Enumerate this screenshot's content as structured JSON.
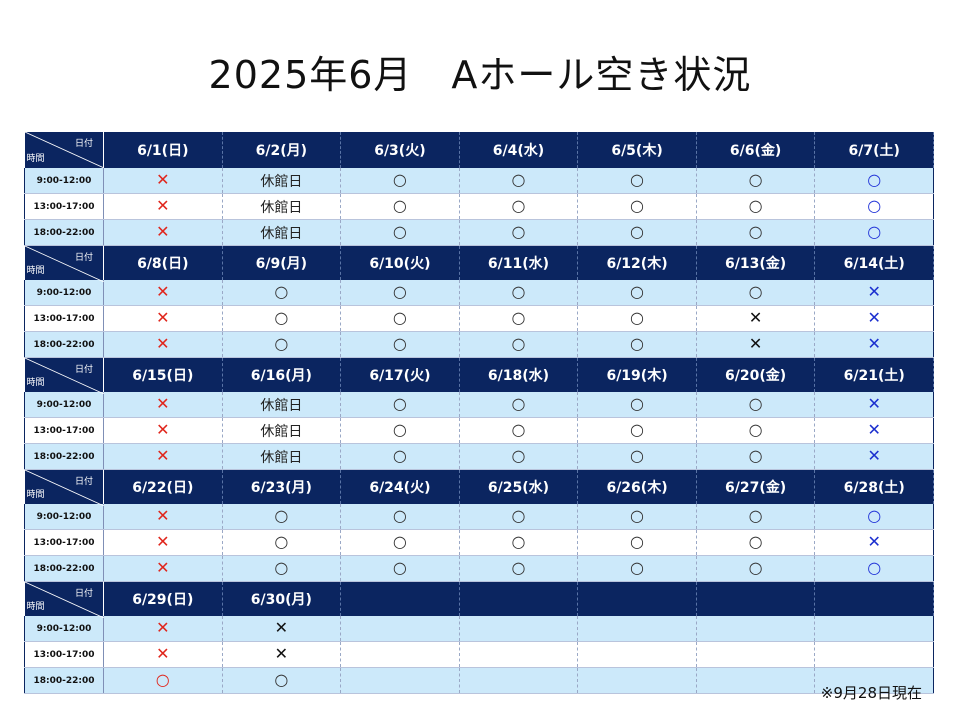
{
  "title": "2025年6月　Aホール空き状況",
  "corner": {
    "date": "日付",
    "time": "時間"
  },
  "slots": [
    "9:00-12:00",
    "13:00-17:00",
    "18:00-22:00"
  ],
  "weeks": [
    {
      "dates": [
        "6/1(日)",
        "6/2(月)",
        "6/3(火)",
        "6/4(水)",
        "6/5(木)",
        "6/6(金)",
        "6/7(土)"
      ],
      "cells": [
        [
          "x-red",
          "closed",
          "o-black",
          "o-black",
          "o-black",
          "o-black",
          "o-blue"
        ],
        [
          "x-red",
          "closed",
          "o-black",
          "o-black",
          "o-black",
          "o-black",
          "o-blue"
        ],
        [
          "x-red",
          "closed",
          "o-black",
          "o-black",
          "o-black",
          "o-black",
          "o-blue"
        ]
      ]
    },
    {
      "dates": [
        "6/8(日)",
        "6/9(月)",
        "6/10(火)",
        "6/11(水)",
        "6/12(木)",
        "6/13(金)",
        "6/14(土)"
      ],
      "cells": [
        [
          "x-red",
          "o-black",
          "o-black",
          "o-black",
          "o-black",
          "o-black",
          "x-blue"
        ],
        [
          "x-red",
          "o-black",
          "o-black",
          "o-black",
          "o-black",
          "x-black",
          "x-blue"
        ],
        [
          "x-red",
          "o-black",
          "o-black",
          "o-black",
          "o-black",
          "x-black",
          "x-blue"
        ]
      ]
    },
    {
      "dates": [
        "6/15(日)",
        "6/16(月)",
        "6/17(火)",
        "6/18(水)",
        "6/19(木)",
        "6/20(金)",
        "6/21(土)"
      ],
      "cells": [
        [
          "x-red",
          "closed",
          "o-black",
          "o-black",
          "o-black",
          "o-black",
          "x-blue"
        ],
        [
          "x-red",
          "closed",
          "o-black",
          "o-black",
          "o-black",
          "o-black",
          "x-blue"
        ],
        [
          "x-red",
          "closed",
          "o-black",
          "o-black",
          "o-black",
          "o-black",
          "x-blue"
        ]
      ]
    },
    {
      "dates": [
        "6/22(日)",
        "6/23(月)",
        "6/24(火)",
        "6/25(水)",
        "6/26(木)",
        "6/27(金)",
        "6/28(土)"
      ],
      "cells": [
        [
          "x-red",
          "o-black",
          "o-black",
          "o-black",
          "o-black",
          "o-black",
          "o-blue"
        ],
        [
          "x-red",
          "o-black",
          "o-black",
          "o-black",
          "o-black",
          "o-black",
          "x-blue"
        ],
        [
          "x-red",
          "o-black",
          "o-black",
          "o-black",
          "o-black",
          "o-black",
          "o-blue"
        ]
      ]
    },
    {
      "dates": [
        "6/29(日)",
        "6/30(月)",
        "",
        "",
        "",
        "",
        ""
      ],
      "cells": [
        [
          "x-red",
          "x-black",
          "",
          "",
          "",
          "",
          ""
        ],
        [
          "x-red",
          "x-black",
          "",
          "",
          "",
          "",
          ""
        ],
        [
          "o-red",
          "o-black",
          "",
          "",
          "",
          "",
          ""
        ]
      ]
    }
  ],
  "symbols": {
    "available": "○",
    "booked": "✕",
    "closed": "休館日"
  },
  "colors": {
    "header_bg": "#0b2560",
    "row_blue": "#cce9fa",
    "sunday_red": "#e0261c",
    "saturday_blue": "#2133d8"
  },
  "note": "※9月28日現在"
}
